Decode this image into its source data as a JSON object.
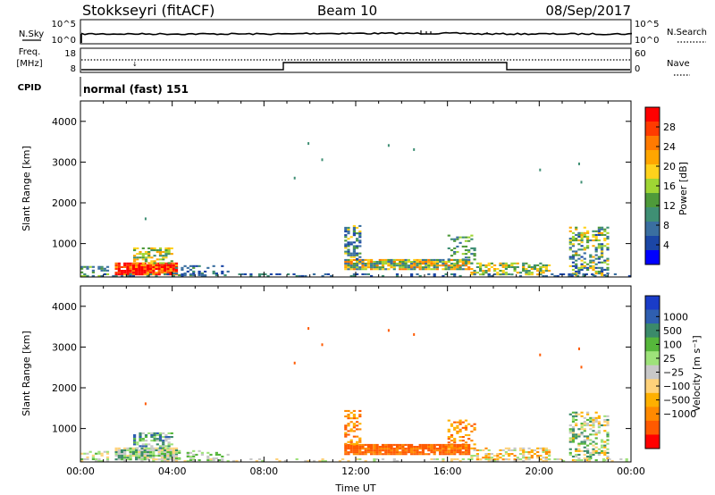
{
  "header": {
    "title": "Stokkseyri (fitACF)",
    "beam": "Beam 10",
    "date": "08/Sep/2017"
  },
  "strip_sky": {
    "left_label": "N.Sky",
    "right_label": "N.Search",
    "left_ticks": [
      "10^5",
      "10^0"
    ],
    "right_ticks": [
      "10^5",
      "10^0"
    ]
  },
  "strip_freq": {
    "left_label_1": "Freq.",
    "left_label_2": "[MHz]",
    "right_label": "Nave",
    "left_ticks": [
      "18",
      "8"
    ],
    "right_ticks": [
      "60",
      "0"
    ]
  },
  "cpid": {
    "label": "CPID",
    "text": "normal (fast) 151"
  },
  "chart_data": [
    {
      "type": "heatmap",
      "name": "power",
      "ylabel": "Slant Range [km]",
      "ylim": [
        180,
        4500
      ],
      "y_ticks": [
        1000,
        2000,
        3000,
        4000
      ],
      "x_ticks_hours": [
        0,
        4,
        8,
        12,
        16,
        20,
        24
      ],
      "colorbar_label": "Power [dB]",
      "colorbar_ticks": [
        4,
        8,
        12,
        16,
        20,
        24,
        28
      ],
      "colorbar_colors": [
        "#0000ff",
        "#1b46a6",
        "#3a6fa0",
        "#3f8f74",
        "#4e9a3a",
        "#9fd534",
        "#ffd21c",
        "#ffa600",
        "#ff7a00",
        "#ff3b00",
        "#ff0000"
      ]
    },
    {
      "type": "heatmap",
      "name": "velocity",
      "ylabel": "Slant Range [km]",
      "xlabel": "Time UT",
      "ylim": [
        180,
        4500
      ],
      "y_ticks": [
        1000,
        2000,
        3000,
        4000
      ],
      "x_ticks": [
        "00:00",
        "04:00",
        "08:00",
        "12:00",
        "16:00",
        "20:00",
        "00:00"
      ],
      "colorbar_label": "Velocity [m s⁻¹]",
      "colorbar_ticks": [
        "1000",
        "500",
        "100",
        "25",
        "−25",
        "−100",
        "−500",
        "−1000"
      ],
      "colorbar_colors": [
        "#1a3cc8",
        "#2f5fb0",
        "#3b8a6a",
        "#56b63b",
        "#9ee27a",
        "#c8c8c8",
        "#ffd27a",
        "#ffb000",
        "#ff8a00",
        "#ff5a00",
        "#ff0000"
      ]
    }
  ]
}
